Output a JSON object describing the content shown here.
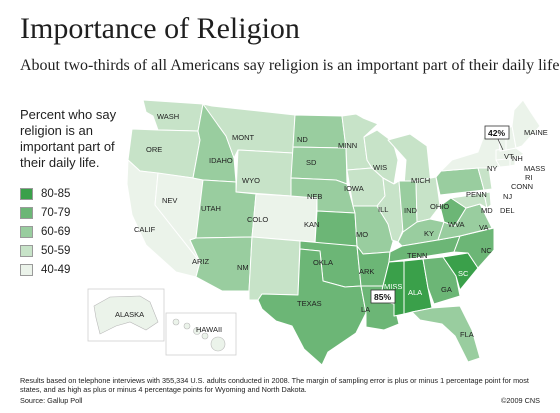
{
  "title": "Importance of Religion",
  "subtitle": "About two-thirds of all Americans say religion is an important part of their daily life.",
  "legend": {
    "title": "Percent who say religion is an important part of their daily life.",
    "items": [
      {
        "label": "80-85",
        "color": "#3aa04a"
      },
      {
        "label": "70-79",
        "color": "#6cb676"
      },
      {
        "label": "60-69",
        "color": "#99cd9f"
      },
      {
        "label": "50-59",
        "color": "#c7e3c8"
      },
      {
        "label": "40-49",
        "color": "#ebf3ea"
      }
    ]
  },
  "callouts": {
    "high": "85%",
    "low": "42%"
  },
  "states": {
    "WASH": "WASH",
    "ORE": "ORE",
    "CALIF": "CALIF",
    "NEV": "NEV",
    "IDAHO": "IDAHO",
    "MONT": "MONT",
    "WYO": "WYO",
    "UTAH": "UTAH",
    "ARIZ": "ARIZ",
    "COLO": "COLO",
    "NM": "NM",
    "ND": "ND",
    "SD": "SD",
    "NEB": "NEB",
    "KAN": "KAN",
    "OKLA": "OKLA",
    "TEXAS": "TEXAS",
    "MINN": "MINN",
    "IOWA": "IOWA",
    "MO": "MO",
    "ARK": "ARK",
    "LA": "LA",
    "WIS": "WIS",
    "ILL": "ILL",
    "MICH": "MICH",
    "IND": "IND",
    "OHIO": "OHIO",
    "KY": "KY",
    "TENN": "TENN",
    "MISS": "MISS",
    "ALA": "ALA",
    "GA": "GA",
    "FLA": "FLA",
    "SC": "SC",
    "NC": "NC",
    "VA": "VA",
    "WVA": "WVA",
    "PENN": "PENN",
    "NY": "NY",
    "MD": "MD",
    "DEL": "DEL",
    "NJ": "NJ",
    "CONN": "CONN",
    "RI": "RI",
    "MASS": "MASS",
    "VT": "VT",
    "NH": "NH",
    "MAINE": "MAINE",
    "ALASKA": "ALASKA",
    "HAWAII": "HAWAII"
  },
  "footnote": "Results based on telephone interviews with 355,334 U.S. adults conducted in 2008. The margin of sampling error is plus or minus 1 percentage point for most states, and as high as plus or minus 4 percentage points for Wyoming and North Dakota.",
  "source": "Source: Gallup Poll",
  "credit": "©2009 CNS"
}
